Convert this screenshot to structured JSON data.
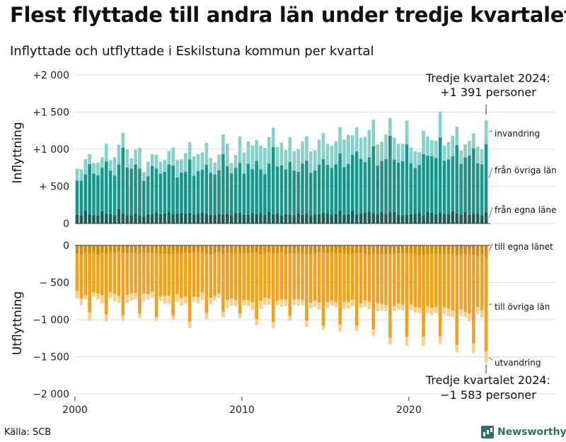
{
  "title": "Flest flyttade till andra län under tredje kvartalet",
  "subtitle": "Inflyttade och utflyttade i Eskilstuna kommun per kvartal",
  "source": "Källa: SCB",
  "brand": "Newsworthy",
  "colors": {
    "in_egna": "#1d5f57",
    "in_ovriga": "#16978a",
    "in_invandring": "#86d1c8",
    "out_egna": "#d98a0a",
    "out_ovriga": "#f5a01a",
    "out_utvandring": "#f8d08c"
  },
  "chart_data": [
    {
      "panel": "Inflyttning",
      "type": "bar",
      "stacked": true,
      "ylabel": "Inflyttning",
      "ylim": [
        0,
        2000
      ],
      "yticks": [
        0,
        500,
        1000,
        1500,
        2000
      ],
      "ytick_labels": [
        "0",
        "+ 500",
        "+1 000",
        "+1 500",
        "+2 000"
      ],
      "xticks": [
        "2000",
        "2010",
        "2020"
      ],
      "x_range": [
        "2000 K1",
        "2024 K3"
      ],
      "series": [
        {
          "name": "från egna länet",
          "values": [
            118,
            108,
            171,
            119,
            113,
            106,
            163,
            135,
            126,
            113,
            194,
            130,
            111,
            111,
            136,
            111,
            101,
            125,
            123,
            150,
            126,
            134,
            156,
            128,
            136,
            145,
            137,
            145,
            122,
            129,
            150,
            132,
            116,
            117,
            131,
            122,
            131,
            111,
            145,
            144,
            120,
            118,
            140,
            123,
            137,
            120,
            156,
            126,
            133,
            108,
            127,
            116,
            113,
            140,
            117,
            129,
            109,
            117,
            125,
            144,
            139,
            120,
            129,
            175,
            122,
            123,
            175,
            122,
            137,
            146,
            157,
            139,
            123,
            153,
            131,
            148,
            156,
            114,
            110,
            116,
            127,
            132,
            151,
            106,
            156,
            146,
            125,
            150,
            129,
            131,
            164,
            136,
            121,
            159,
            114,
            128,
            128,
            105,
            151
          ]
        },
        {
          "name": "från övriga län",
          "values": [
            460,
            470,
            490,
            682,
            560,
            541,
            585,
            701,
            587,
            531,
            601,
            892,
            642,
            627,
            659,
            627,
            471,
            511,
            651,
            591,
            544,
            561,
            641,
            649,
            484,
            540,
            559,
            718,
            523,
            575,
            574,
            661,
            566,
            542,
            586,
            811,
            641,
            563,
            602,
            672,
            552,
            686,
            592,
            721,
            593,
            545,
            651,
            902,
            634,
            676,
            601,
            715,
            600,
            556,
            689,
            719,
            573,
            599,
            667,
            724,
            649,
            627,
            666,
            770,
            638,
            680,
            748,
            846,
            735,
            680,
            734,
            901,
            656,
            689,
            737,
            1034,
            703,
            705,
            729,
            951,
            686,
            615,
            637,
            830,
            757,
            760,
            756,
            1009,
            714,
            734,
            743,
            920,
            683,
            733,
            801,
            884,
            681,
            691,
            919
          ]
        },
        {
          "name": "invandring",
          "values": [
            159,
            152,
            206,
            133,
            141,
            171,
            142,
            238,
            139,
            252,
            264,
            202,
            242,
            142,
            201,
            282,
            121,
            196,
            157,
            185,
            162,
            160,
            178,
            248,
            235,
            181,
            252,
            232,
            259,
            230,
            234,
            293,
            201,
            162,
            212,
            267,
            303,
            142,
            176,
            356,
            285,
            301,
            319,
            278,
            318,
            353,
            358,
            262,
            262,
            306,
            263,
            330,
            260,
            307,
            296,
            325,
            287,
            271,
            334,
            349,
            284,
            299,
            310,
            354,
            368,
            393,
            264,
            326,
            282,
            342,
            369,
            357,
            286,
            258,
            329,
            236,
            296,
            255,
            236,
            320,
            213,
            228,
            173,
            315,
            259,
            216,
            231,
            345,
            205,
            234,
            274,
            249,
            182,
            174,
            198,
            199,
            225,
            199,
            321
          ]
        }
      ],
      "annotations": [
        {
          "text": "Tredje kvartalet 2024:",
          "value_text": "+1 391 personer",
          "value": 1391
        },
        {
          "text": "invandring"
        },
        {
          "text": "från övriga län"
        },
        {
          "text": "från egna läne"
        }
      ]
    },
    {
      "panel": "Utflyttning",
      "type": "bar",
      "stacked": true,
      "ylabel": "Utflyttning",
      "ylim": [
        -2000,
        0
      ],
      "yticks": [
        0,
        -500,
        -1000,
        -1500,
        -2000
      ],
      "ytick_labels": [
        "0",
        "− 500",
        "−1 000",
        "−1 500",
        "−2 000"
      ],
      "xticks": [
        "2000",
        "2010",
        "2020"
      ],
      "x_range": [
        "2000 K1",
        "2024 K3"
      ],
      "series": [
        {
          "name": "till egna länet",
          "values": [
            -108,
            -122,
            -93,
            -110,
            -99,
            -131,
            -102,
            -113,
            -104,
            -100,
            -93,
            -100,
            -105,
            -100,
            -102,
            -114,
            -105,
            -95,
            -100,
            -108,
            -113,
            -113,
            -117,
            -117,
            -103,
            -111,
            -97,
            -111,
            -103,
            -94,
            -93,
            -116,
            -121,
            -101,
            -96,
            -114,
            -99,
            -100,
            -104,
            -115,
            -103,
            -108,
            -107,
            -98,
            -118,
            -112,
            -93,
            -111,
            -105,
            -98,
            -114,
            -111,
            -104,
            -111,
            -116,
            -117,
            -116,
            -111,
            -97,
            -99,
            -107,
            -95,
            -103,
            -105,
            -100,
            -115,
            -109,
            -100,
            -101,
            -113,
            -126,
            -114,
            -121,
            -117,
            -118,
            -116,
            -114,
            -106,
            -117,
            -116,
            -108,
            -117,
            -125,
            -119,
            -115,
            -108,
            -116,
            -120,
            -111,
            -116,
            -113,
            -125,
            -120,
            -118,
            -120,
            -124,
            -133,
            -121,
            -156
          ]
        },
        {
          "name": "till övriga län",
          "values": [
            -507,
            -595,
            -580,
            -792,
            -530,
            -516,
            -572,
            -817,
            -521,
            -551,
            -589,
            -840,
            -563,
            -544,
            -542,
            -806,
            -543,
            -560,
            -525,
            -854,
            -573,
            -569,
            -559,
            -825,
            -555,
            -594,
            -596,
            -914,
            -585,
            -605,
            -541,
            -796,
            -586,
            -579,
            -548,
            -783,
            -640,
            -618,
            -633,
            -806,
            -635,
            -634,
            -656,
            -896,
            -625,
            -594,
            -623,
            -923,
            -640,
            -628,
            -615,
            -836,
            -625,
            -611,
            -613,
            -898,
            -658,
            -634,
            -675,
            -982,
            -653,
            -649,
            -656,
            -960,
            -658,
            -644,
            -619,
            -981,
            -680,
            -630,
            -634,
            -1015,
            -659,
            -668,
            -685,
            -1127,
            -702,
            -676,
            -681,
            -1114,
            -685,
            -714,
            -713,
            -1109,
            -704,
            -734,
            -712,
            -1102,
            -722,
            -738,
            -764,
            -1215,
            -738,
            -779,
            -797,
            -1195,
            -700,
            -750,
            -1276
          ]
        },
        {
          "name": "utvandring",
          "values": [
            -101,
            -92,
            -52,
            -113,
            -58,
            -76,
            -106,
            -91,
            -82,
            -106,
            -90,
            -75,
            -108,
            -102,
            -82,
            -63,
            -103,
            -77,
            -79,
            -55,
            -61,
            -104,
            -111,
            -56,
            -107,
            -105,
            -92,
            -89,
            -69,
            -81,
            -103,
            -81,
            -84,
            -60,
            -61,
            -73,
            -103,
            -93,
            -82,
            -61,
            -72,
            -78,
            -103,
            -79,
            -111,
            -92,
            -84,
            -83,
            -59,
            -101,
            -88,
            -71,
            -72,
            -89,
            -76,
            -82,
            -76,
            -84,
            -94,
            -55,
            -81,
            -68,
            -72,
            -96,
            -99,
            -87,
            -91,
            -75,
            -56,
            -85,
            -96,
            -94,
            -104,
            -88,
            -82,
            -90,
            -71,
            -84,
            -80,
            -119,
            -77,
            -75,
            -79,
            -127,
            -94,
            -96,
            -82,
            -106,
            -90,
            -104,
            -86,
            -100,
            -89,
            -75,
            -105,
            -129,
            -90,
            -101,
            -151
          ]
        }
      ],
      "annotations": [
        {
          "text": "till egna länet"
        },
        {
          "text": "till övriga län"
        },
        {
          "text": "utvandring"
        },
        {
          "text": "Tredje kvartalet 2024:",
          "value_text": "−1 583 personer",
          "value": -1583
        }
      ]
    }
  ]
}
